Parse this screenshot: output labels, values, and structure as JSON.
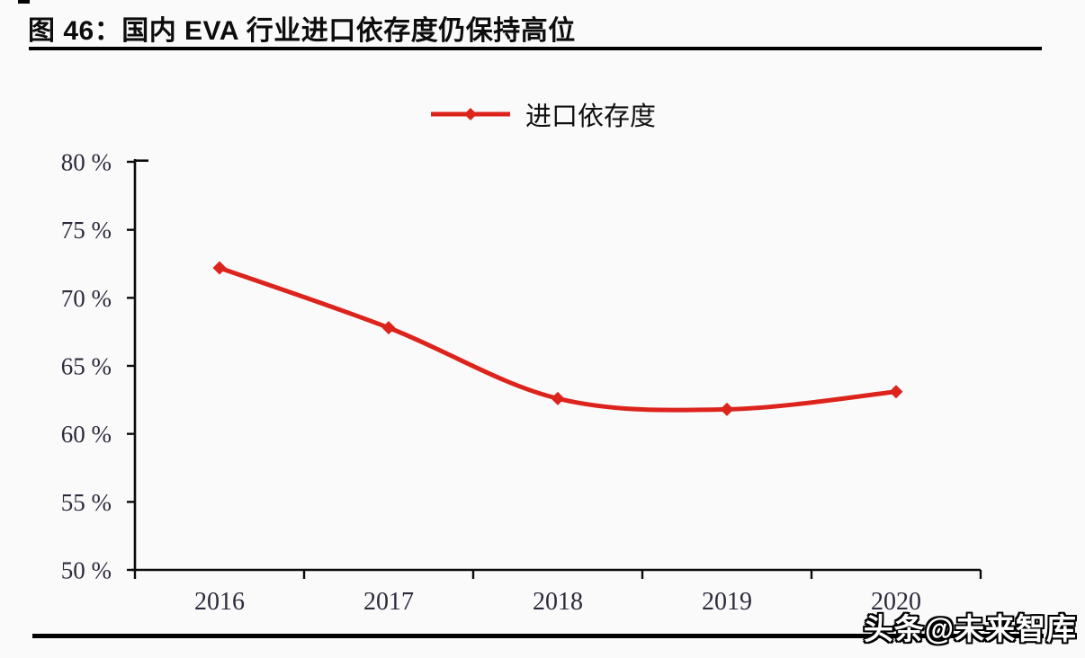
{
  "figure": {
    "title": "图 46：国内 EVA 行业进口依存度仍保持高位",
    "watermark": "头条@未来智库"
  },
  "legend": {
    "label": "进口依存度",
    "color": "#dc231c"
  },
  "chart_data": {
    "type": "line",
    "title": "国内 EVA 行业进口依存度仍保持高位",
    "categories": [
      "2016",
      "2017",
      "2018",
      "2019",
      "2020"
    ],
    "series": [
      {
        "name": "进口依存度",
        "color": "#dc231c",
        "marker": "diamond",
        "values": [
          72.2,
          67.8,
          62.6,
          61.8,
          63.1
        ]
      }
    ],
    "xlabel": "",
    "ylabel": "",
    "ylim": [
      50,
      80
    ],
    "ytick_step": 5,
    "ytick_suffix": " %",
    "yticks": [
      "80 %",
      "75 %",
      "70 %",
      "65 %",
      "60 %",
      "55 %",
      "50 %"
    ],
    "grid": false,
    "smooth": true,
    "legend_position": "top-center",
    "axis_color": "#0a0a0a",
    "tick_label_color": "#2b2b3d"
  }
}
